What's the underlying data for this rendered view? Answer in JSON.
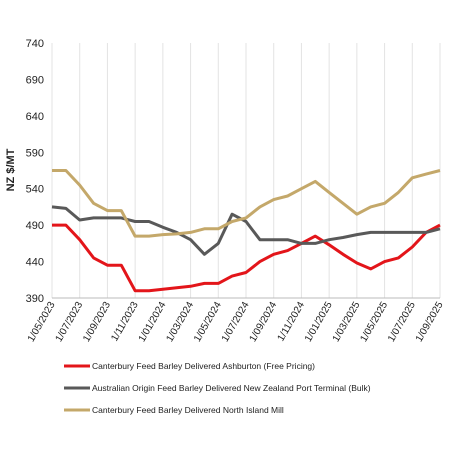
{
  "chart_data": {
    "type": "line",
    "y_label": "NZ $/MT",
    "categories": [
      "1/05/2023",
      null,
      "1/07/2023",
      null,
      "1/09/2023",
      null,
      "1/11/2023",
      null,
      "1/01/2024",
      null,
      "1/03/2024",
      null,
      "1/05/2024",
      null,
      "1/07/2024",
      null,
      "1/09/2024",
      null,
      "1/11/2024",
      null,
      "1/01/2025",
      null,
      "1/03/2025",
      null,
      "1/05/2025",
      null,
      "1/07/2025",
      null,
      "1/09/2025"
    ],
    "series": [
      {
        "name": "Canterbury Feed Barley Delivered Ashburton (Free Pricing)",
        "color": "#e3151a",
        "values": [
          490,
          490,
          470,
          445,
          435,
          435,
          400,
          400,
          402,
          404,
          406,
          410,
          410,
          420,
          425,
          440,
          450,
          455,
          465,
          475,
          463,
          450,
          438,
          430,
          440,
          445,
          460,
          480,
          490
        ]
      },
      {
        "name": "Australian Origin Feed Barley Delivered New Zealand Port Terminal (Bulk)",
        "color": "#595959",
        "values": [
          515,
          513,
          497,
          500,
          500,
          500,
          495,
          495,
          487,
          480,
          470,
          450,
          465,
          505,
          495,
          470,
          470,
          470,
          465,
          465,
          470,
          473,
          477,
          480,
          480,
          480,
          480,
          480,
          485
        ]
      },
      {
        "name": "Canterbury Feed Barley Delivered North Island Mill",
        "color": "#c4a86a",
        "values": [
          565,
          565,
          545,
          520,
          510,
          510,
          475,
          475,
          477,
          478,
          480,
          485,
          485,
          495,
          500,
          515,
          525,
          530,
          540,
          550,
          535,
          520,
          505,
          515,
          520,
          535,
          555,
          560,
          565
        ]
      }
    ],
    "ylim": [
      390,
      740
    ],
    "yticks": [
      390,
      440,
      490,
      540,
      590,
      640,
      690,
      740
    ],
    "grid": true
  }
}
